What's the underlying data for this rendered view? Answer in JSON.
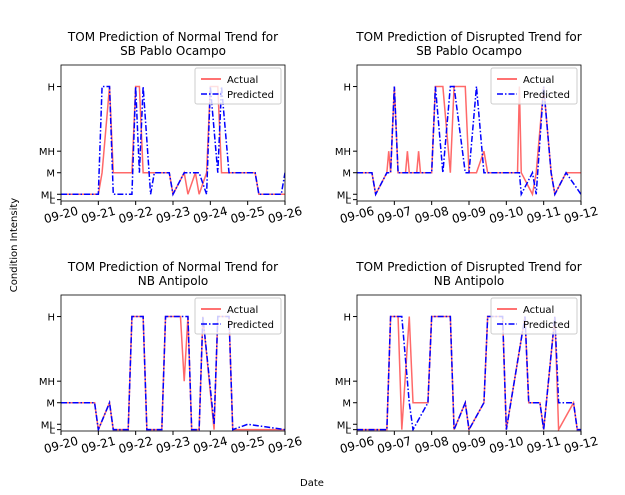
{
  "xlabel": "Date",
  "ylabel": "Condition Intensity",
  "chart_data": [
    {
      "type": "line",
      "title": [
        "TOM Prediction of Normal Trend for",
        "SB Pablo Ocampo"
      ],
      "x": [
        20,
        21.0,
        21.1,
        21.3,
        21.4,
        21.9,
        22.0,
        22.1,
        22.2,
        22.4,
        22.5,
        22.9,
        23.0,
        23.3,
        23.4,
        23.6,
        23.7,
        23.9,
        24.0,
        24.2,
        24.3,
        24.5,
        25.2,
        25.3,
        25.9,
        26
      ],
      "series": [
        {
          "name": "Actual",
          "color": "#ff4444",
          "values": [
            0.2,
            0.2,
            1,
            4.2,
            1,
            1,
            4.2,
            4.2,
            1,
            1,
            1,
            1,
            0.2,
            1,
            0.2,
            1,
            0.2,
            1,
            4.2,
            4.2,
            1,
            1,
            1,
            0.2,
            0.2,
            0.2
          ]
        },
        {
          "name": "Predicted",
          "color": "#0000ff",
          "values": [
            0.2,
            0.2,
            4.2,
            4.2,
            0.2,
            0.2,
            4.2,
            1,
            4.2,
            0.2,
            1,
            1,
            0.2,
            1,
            1,
            1,
            1,
            0.2,
            4.2,
            1,
            4.2,
            1,
            1,
            0.2,
            0.2,
            1
          ]
        }
      ],
      "xlim": [
        20,
        26
      ],
      "xticks": [
        {
          "value": 20,
          "label": "09-20"
        },
        {
          "value": 21,
          "label": "09-21"
        },
        {
          "value": 22,
          "label": "09-22"
        },
        {
          "value": 23,
          "label": "09-23"
        },
        {
          "value": 24,
          "label": "09-24"
        },
        {
          "value": 25,
          "label": "09-25"
        },
        {
          "value": 26,
          "label": "09-26"
        }
      ],
      "ylim": [
        -0.05,
        5
      ],
      "yticks": [
        {
          "value": 0,
          "label": "L"
        },
        {
          "value": 0.2,
          "label": "ML"
        },
        {
          "value": 1,
          "label": "M"
        },
        {
          "value": 1.8,
          "label": "MH"
        },
        {
          "value": 4.2,
          "label": "H"
        }
      ],
      "legend": "upper right"
    },
    {
      "type": "line",
      "title": [
        "TOM Prediction of Disrupted Trend for",
        "SB Pablo Ocampo"
      ],
      "x": [
        6,
        6.4,
        6.5,
        6.8,
        6.85,
        6.9,
        7.0,
        7.1,
        7.3,
        7.35,
        7.4,
        7.6,
        7.65,
        7.7,
        8.0,
        8.1,
        8.3,
        8.5,
        8.6,
        8.9,
        9.0,
        9.2,
        9.4,
        9.5,
        10.3,
        10.35,
        10.4,
        10.7,
        10.8,
        11.0,
        11.2,
        11.3,
        11.6,
        12
      ],
      "series": [
        {
          "name": "Actual",
          "color": "#ff4444",
          "values": [
            1,
            1,
            0.2,
            1,
            1.8,
            1,
            4.2,
            1,
            1,
            1.8,
            1,
            1,
            1.8,
            1,
            1,
            4.2,
            4.2,
            1,
            4.2,
            4.2,
            1,
            1,
            1.8,
            1,
            1,
            4.2,
            1,
            0.2,
            1,
            4.2,
            1,
            0.2,
            1,
            1
          ]
        },
        {
          "name": "Predicted",
          "color": "#0000ff",
          "values": [
            1,
            1,
            0.2,
            1,
            1,
            1,
            4.2,
            1,
            1,
            1,
            1,
            1,
            1,
            1,
            1,
            4.2,
            1,
            4.2,
            4.2,
            1,
            1,
            4.2,
            1,
            1,
            1,
            1,
            0.2,
            1,
            0.2,
            4.2,
            1,
            0.2,
            1,
            0.2
          ]
        }
      ],
      "xlim": [
        6,
        12
      ],
      "xticks": [
        {
          "value": 6,
          "label": "09-06"
        },
        {
          "value": 7,
          "label": "09-07"
        },
        {
          "value": 8,
          "label": "09-08"
        },
        {
          "value": 9,
          "label": "09-09"
        },
        {
          "value": 10,
          "label": "09-10"
        },
        {
          "value": 11,
          "label": "09-11"
        },
        {
          "value": 12,
          "label": "09-12"
        }
      ],
      "ylim": [
        -0.05,
        5
      ],
      "yticks": [
        {
          "value": 0,
          "label": "L"
        },
        {
          "value": 0.2,
          "label": "ML"
        },
        {
          "value": 1,
          "label": "M"
        },
        {
          "value": 1.8,
          "label": "MH"
        },
        {
          "value": 4.2,
          "label": "H"
        }
      ],
      "legend": "upper right"
    },
    {
      "type": "line",
      "title": [
        "TOM Prediction of Normal Trend for",
        "NB Antipolo"
      ],
      "x": [
        20,
        20.9,
        21.0,
        21.3,
        21.4,
        21.8,
        21.9,
        22.2,
        22.3,
        22.7,
        22.8,
        23.2,
        23.3,
        23.4,
        23.5,
        23.7,
        23.8,
        24.1,
        24.2,
        24.5,
        24.6,
        25,
        26
      ],
      "series": [
        {
          "name": "Actual",
          "color": "#ff4444",
          "values": [
            1,
            1,
            0,
            1,
            0,
            0,
            4.2,
            4.2,
            0,
            0,
            4.2,
            4.2,
            1.8,
            4.2,
            0,
            0,
            4.2,
            0,
            4.2,
            4.2,
            0,
            0,
            0
          ]
        },
        {
          "name": "Predicted",
          "color": "#0000ff",
          "values": [
            1,
            1,
            0,
            1,
            0,
            0,
            4.2,
            4.2,
            0,
            0,
            4.2,
            4.2,
            4.2,
            4.2,
            0,
            0,
            4.2,
            0.2,
            4.2,
            4.2,
            0,
            0.2,
            0
          ]
        }
      ],
      "xlim": [
        20,
        26
      ],
      "xticks": [
        {
          "value": 20,
          "label": "09-20"
        },
        {
          "value": 21,
          "label": "09-21"
        },
        {
          "value": 22,
          "label": "09-22"
        },
        {
          "value": 23,
          "label": "09-23"
        },
        {
          "value": 24,
          "label": "09-24"
        },
        {
          "value": 25,
          "label": "09-25"
        },
        {
          "value": 26,
          "label": "09-26"
        }
      ],
      "ylim": [
        -0.05,
        5
      ],
      "yticks": [
        {
          "value": 0,
          "label": "L"
        },
        {
          "value": 0.2,
          "label": "ML"
        },
        {
          "value": 1,
          "label": "M"
        },
        {
          "value": 1.8,
          "label": "MH"
        },
        {
          "value": 4.2,
          "label": "H"
        }
      ],
      "legend": "upper right"
    },
    {
      "type": "line",
      "title": [
        "TOM Prediction of Disrupted Trend for",
        "NB Antipolo"
      ],
      "x": [
        6,
        6.8,
        6.9,
        7.1,
        7.2,
        7.4,
        7.5,
        7.9,
        8.0,
        8.5,
        8.6,
        8.9,
        9.0,
        9.4,
        9.5,
        9.9,
        10.0,
        10.5,
        10.6,
        10.9,
        11.0,
        11.3,
        11.4,
        11.8,
        11.9,
        12
      ],
      "series": [
        {
          "name": "Actual",
          "color": "#ff4444",
          "values": [
            0,
            0,
            4.2,
            4.2,
            0,
            4.2,
            1,
            1,
            4.2,
            4.2,
            0,
            1,
            0,
            1,
            4.2,
            4.2,
            0,
            4.2,
            1,
            1,
            0,
            4.2,
            0,
            1,
            0,
            0
          ]
        },
        {
          "name": "Predicted",
          "color": "#0000ff",
          "values": [
            0,
            0,
            4.2,
            4.2,
            4.2,
            1,
            0,
            1,
            4.2,
            4.2,
            0,
            1,
            0,
            1,
            4.2,
            4.2,
            0,
            4.2,
            1,
            1,
            0,
            4.2,
            1,
            1,
            0,
            0
          ]
        }
      ],
      "xlim": [
        6,
        12
      ],
      "xticks": [
        {
          "value": 6,
          "label": "09-06"
        },
        {
          "value": 7,
          "label": "09-07"
        },
        {
          "value": 8,
          "label": "09-08"
        },
        {
          "value": 9,
          "label": "09-09"
        },
        {
          "value": 10,
          "label": "09-10"
        },
        {
          "value": 11,
          "label": "09-11"
        },
        {
          "value": 12,
          "label": "09-12"
        }
      ],
      "ylim": [
        -0.05,
        5
      ],
      "yticks": [
        {
          "value": 0,
          "label": "L"
        },
        {
          "value": 0.2,
          "label": "ML"
        },
        {
          "value": 1,
          "label": "M"
        },
        {
          "value": 1.8,
          "label": "MH"
        },
        {
          "value": 4.2,
          "label": "H"
        }
      ],
      "legend": "upper right"
    }
  ]
}
